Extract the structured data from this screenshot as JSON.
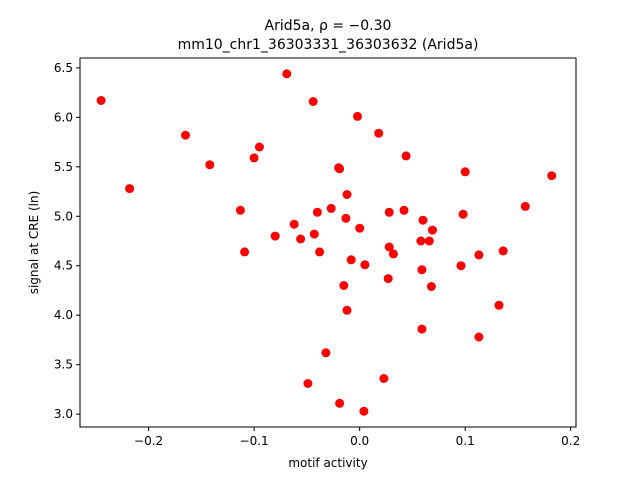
{
  "chart_data": {
    "type": "scatter",
    "title_line1": "Arid5a, ρ = −0.30",
    "title_line2": "mm10_chr1_36303331_36303632 (Arid5a)",
    "xlabel": "motif activity",
    "ylabel": "signal at CRE (ln)",
    "xlim": [
      -0.265,
      0.205
    ],
    "ylim": [
      2.87,
      6.6
    ],
    "xticks": [
      {
        "value": -0.2,
        "label": "−0.2"
      },
      {
        "value": -0.1,
        "label": "−0.1"
      },
      {
        "value": 0.0,
        "label": "0.0"
      },
      {
        "value": 0.1,
        "label": "0.1"
      },
      {
        "value": 0.2,
        "label": "0.2"
      }
    ],
    "yticks": [
      {
        "value": 3.0,
        "label": "3.0"
      },
      {
        "value": 3.5,
        "label": "3.5"
      },
      {
        "value": 4.0,
        "label": "4.0"
      },
      {
        "value": 4.5,
        "label": "4.5"
      },
      {
        "value": 5.0,
        "label": "5.0"
      },
      {
        "value": 5.5,
        "label": "5.5"
      },
      {
        "value": 6.0,
        "label": "6.0"
      },
      {
        "value": 6.5,
        "label": "6.5"
      }
    ],
    "grid": false,
    "marker_color": "#ff0000",
    "points": [
      {
        "x": -0.245,
        "y": 6.17
      },
      {
        "x": -0.218,
        "y": 5.28
      },
      {
        "x": -0.165,
        "y": 5.82
      },
      {
        "x": -0.142,
        "y": 5.52
      },
      {
        "x": -0.113,
        "y": 5.06
      },
      {
        "x": -0.109,
        "y": 4.64
      },
      {
        "x": -0.1,
        "y": 5.59
      },
      {
        "x": -0.095,
        "y": 5.7
      },
      {
        "x": -0.08,
        "y": 4.8
      },
      {
        "x": -0.069,
        "y": 6.44
      },
      {
        "x": -0.062,
        "y": 4.92
      },
      {
        "x": -0.056,
        "y": 4.77
      },
      {
        "x": -0.049,
        "y": 3.31
      },
      {
        "x": -0.044,
        "y": 6.16
      },
      {
        "x": -0.043,
        "y": 4.82
      },
      {
        "x": -0.04,
        "y": 5.04
      },
      {
        "x": -0.038,
        "y": 4.64
      },
      {
        "x": -0.032,
        "y": 3.62
      },
      {
        "x": -0.027,
        "y": 5.08
      },
      {
        "x": -0.02,
        "y": 5.49
      },
      {
        "x": -0.019,
        "y": 5.48
      },
      {
        "x": -0.019,
        "y": 3.11
      },
      {
        "x": -0.015,
        "y": 4.3
      },
      {
        "x": -0.013,
        "y": 4.98
      },
      {
        "x": -0.012,
        "y": 5.22
      },
      {
        "x": -0.012,
        "y": 4.05
      },
      {
        "x": -0.008,
        "y": 4.56
      },
      {
        "x": -0.002,
        "y": 6.01
      },
      {
        "x": 0.0,
        "y": 4.88
      },
      {
        "x": 0.004,
        "y": 3.03
      },
      {
        "x": 0.005,
        "y": 4.51
      },
      {
        "x": 0.018,
        "y": 5.84
      },
      {
        "x": 0.023,
        "y": 3.36
      },
      {
        "x": 0.027,
        "y": 4.37
      },
      {
        "x": 0.028,
        "y": 5.04
      },
      {
        "x": 0.028,
        "y": 4.69
      },
      {
        "x": 0.032,
        "y": 4.62
      },
      {
        "x": 0.042,
        "y": 5.06
      },
      {
        "x": 0.044,
        "y": 5.61
      },
      {
        "x": 0.058,
        "y": 4.75
      },
      {
        "x": 0.059,
        "y": 4.46
      },
      {
        "x": 0.06,
        "y": 4.96
      },
      {
        "x": 0.059,
        "y": 3.86
      },
      {
        "x": 0.066,
        "y": 4.75
      },
      {
        "x": 0.068,
        "y": 4.29
      },
      {
        "x": 0.069,
        "y": 4.86
      },
      {
        "x": 0.096,
        "y": 4.5
      },
      {
        "x": 0.098,
        "y": 5.02
      },
      {
        "x": 0.1,
        "y": 5.45
      },
      {
        "x": 0.113,
        "y": 4.61
      },
      {
        "x": 0.113,
        "y": 3.78
      },
      {
        "x": 0.132,
        "y": 4.1
      },
      {
        "x": 0.136,
        "y": 4.65
      },
      {
        "x": 0.157,
        "y": 5.1
      },
      {
        "x": 0.182,
        "y": 5.41
      }
    ]
  }
}
